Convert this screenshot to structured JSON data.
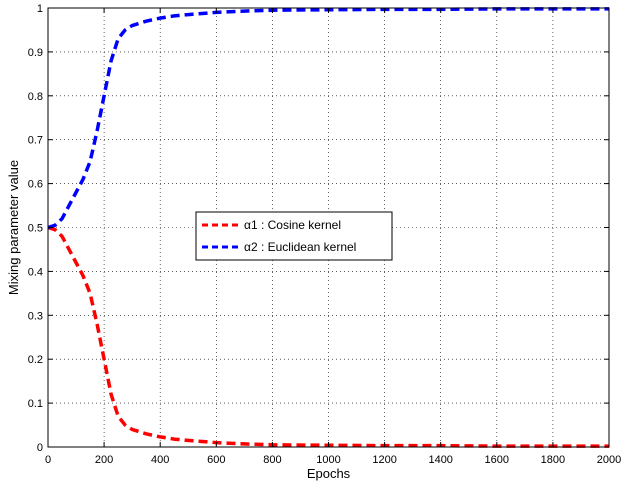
{
  "chart_data": {
    "type": "line",
    "xlabel": "Epochs",
    "ylabel": "Mixing parameter value",
    "xlim": [
      0,
      2000
    ],
    "ylim": [
      0,
      1
    ],
    "xticks": [
      0,
      200,
      400,
      600,
      800,
      1000,
      1200,
      1400,
      1600,
      1800,
      2000
    ],
    "yticks": [
      0,
      0.1,
      0.2,
      0.3,
      0.4,
      0.5,
      0.6,
      0.7,
      0.8,
      0.9,
      1
    ],
    "grid": true,
    "legend_position": "center",
    "series": [
      {
        "name": "α1 : Cosine kernel",
        "color": "#ff0000",
        "line_style": "dashed",
        "x": [
          0,
          25,
          50,
          75,
          100,
          125,
          150,
          175,
          200,
          225,
          250,
          275,
          300,
          350,
          400,
          450,
          500,
          600,
          700,
          800,
          1000,
          1200,
          1400,
          1600,
          1800,
          2000
        ],
        "y": [
          0.5,
          0.495,
          0.48,
          0.45,
          0.42,
          0.39,
          0.35,
          0.28,
          0.2,
          0.12,
          0.07,
          0.05,
          0.04,
          0.03,
          0.023,
          0.018,
          0.015,
          0.01,
          0.007,
          0.005,
          0.004,
          0.003,
          0.003,
          0.002,
          0.002,
          0.002
        ]
      },
      {
        "name": "α2 : Euclidean kernel",
        "color": "#0000ff",
        "line_style": "dashed",
        "x": [
          0,
          25,
          50,
          75,
          100,
          125,
          150,
          175,
          200,
          225,
          250,
          275,
          300,
          350,
          400,
          450,
          500,
          600,
          700,
          800,
          1000,
          1200,
          1400,
          1600,
          1800,
          2000
        ],
        "y": [
          0.5,
          0.505,
          0.52,
          0.55,
          0.58,
          0.61,
          0.65,
          0.72,
          0.8,
          0.88,
          0.93,
          0.95,
          0.96,
          0.97,
          0.977,
          0.982,
          0.985,
          0.99,
          0.993,
          0.995,
          0.996,
          0.997,
          0.997,
          0.998,
          0.998,
          0.998
        ]
      }
    ]
  }
}
